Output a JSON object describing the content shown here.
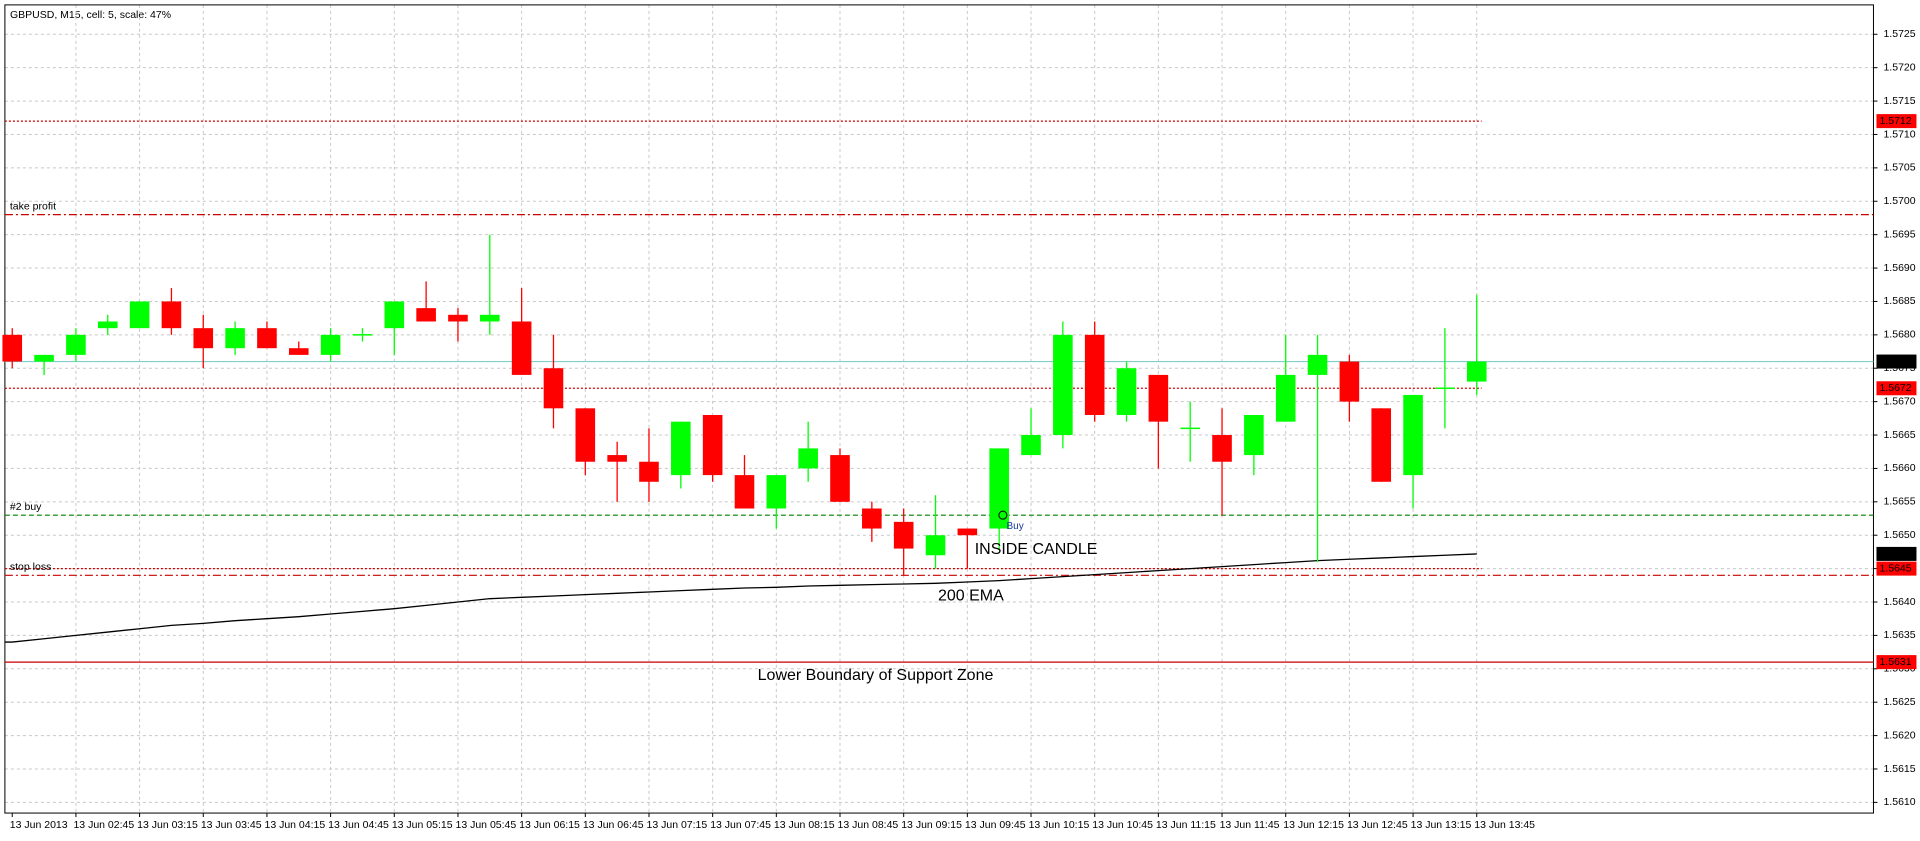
{
  "chart_data": {
    "type": "candlestick",
    "title": "GBPUSD, M15, cell: 5, scale: 47%",
    "categories": [
      "13 Jun 2013",
      null,
      "13 Jun 02:45",
      null,
      "13 Jun 03:15",
      null,
      "13 Jun 03:45",
      null,
      "13 Jun 04:15",
      null,
      "13 Jun 04:45",
      null,
      "13 Jun 05:15",
      null,
      "13 Jun 05:45",
      null,
      "13 Jun 06:15",
      null,
      "13 Jun 06:45",
      null,
      "13 Jun 07:15",
      null,
      "13 Jun 07:45",
      null,
      "13 Jun 08:15",
      null,
      "13 Jun 08:45",
      null,
      "13 Jun 09:15",
      null,
      "13 Jun 09:45",
      null,
      "13 Jun 10:15",
      null,
      "13 Jun 10:45",
      null,
      "13 Jun 11:15",
      null,
      "13 Jun 11:45",
      null,
      "13 Jun 12:15",
      null,
      "13 Jun 12:45",
      null,
      "13 Jun 13:15",
      null,
      "13 Jun 13:45"
    ],
    "open": [
      1.568,
      1.5676,
      1.5677,
      1.5681,
      1.5681,
      1.5685,
      1.5681,
      1.5678,
      1.5681,
      1.5678,
      1.5677,
      1.568,
      1.5681,
      1.5684,
      1.5683,
      1.5682,
      1.5682,
      1.5675,
      1.5669,
      1.5662,
      1.5661,
      1.5659,
      1.5668,
      1.5659,
      1.5654,
      1.566,
      1.5662,
      1.5654,
      1.5652,
      1.5647,
      1.5651,
      1.5651,
      1.5662,
      1.5665,
      1.568,
      1.5668,
      1.5674,
      1.5666,
      1.5665,
      1.5662,
      1.5667,
      1.5674,
      1.5676,
      1.5669,
      1.5659,
      1.5672,
      1.5673
    ],
    "high": [
      1.5681,
      1.5677,
      1.5681,
      1.5683,
      1.5685,
      1.5687,
      1.5683,
      1.5682,
      1.5682,
      1.5679,
      1.5681,
      1.5681,
      1.5685,
      1.5688,
      1.5684,
      1.5695,
      1.5687,
      1.568,
      1.5669,
      1.5664,
      1.5666,
      1.5667,
      1.5668,
      1.5662,
      1.5659,
      1.5667,
      1.5663,
      1.5655,
      1.5654,
      1.5656,
      1.5651,
      1.5663,
      1.5669,
      1.5682,
      1.5682,
      1.5676,
      1.5674,
      1.567,
      1.5669,
      1.5668,
      1.568,
      1.568,
      1.5677,
      1.5669,
      1.5671,
      1.5681,
      1.5686
    ],
    "low": [
      1.5675,
      1.5674,
      1.5676,
      1.568,
      1.5681,
      1.568,
      1.5675,
      1.5677,
      1.5678,
      1.5677,
      1.5676,
      1.5679,
      1.5677,
      1.5682,
      1.5679,
      1.568,
      1.5674,
      1.5666,
      1.5659,
      1.5655,
      1.5655,
      1.5657,
      1.5658,
      1.5654,
      1.5651,
      1.5658,
      1.5655,
      1.5649,
      1.5644,
      1.5645,
      1.5645,
      1.5648,
      1.5662,
      1.5663,
      1.5667,
      1.5667,
      1.566,
      1.5661,
      1.5653,
      1.5659,
      1.5667,
      1.5646,
      1.5667,
      1.5658,
      1.5654,
      1.5666,
      1.5671
    ],
    "close": [
      1.5676,
      1.5677,
      1.568,
      1.5682,
      1.5685,
      1.5681,
      1.5678,
      1.5681,
      1.5678,
      1.5677,
      1.568,
      1.568,
      1.5685,
      1.5682,
      1.5682,
      1.5683,
      1.5674,
      1.5669,
      1.5661,
      1.5661,
      1.5658,
      1.5667,
      1.5659,
      1.5654,
      1.5659,
      1.5663,
      1.5655,
      1.5651,
      1.5648,
      1.565,
      1.565,
      1.5663,
      1.5665,
      1.568,
      1.5668,
      1.5675,
      1.5667,
      1.5666,
      1.5661,
      1.5668,
      1.5674,
      1.5677,
      1.567,
      1.5658,
      1.5671,
      1.5672,
      1.5676
    ],
    "up_color": "#00ff00",
    "down_color": "#ff0000",
    "ema": {
      "color": "#000000",
      "last_label": "1.5647",
      "values": [
        1.5634,
        1.56345,
        1.5635,
        1.56355,
        1.5636,
        1.56365,
        1.56368,
        1.56372,
        1.56375,
        1.56378,
        1.56382,
        1.56386,
        1.5639,
        1.56395,
        1.564,
        1.56405,
        1.56407,
        1.56409,
        1.56411,
        1.56413,
        1.56415,
        1.56417,
        1.56419,
        1.56421,
        1.56422,
        1.56424,
        1.56425,
        1.56426,
        1.56427,
        1.56428,
        1.5643,
        1.56432,
        1.56435,
        1.56438,
        1.56441,
        1.56444,
        1.56447,
        1.5645,
        1.56453,
        1.56456,
        1.56459,
        1.56462,
        1.56464,
        1.56466,
        1.56468,
        1.5647,
        1.56472
      ]
    },
    "levels": [
      {
        "value": 1.5712,
        "color": "#cc0000",
        "style": "dotted",
        "box": true,
        "box_color": "#ff0000",
        "to_last": true
      },
      {
        "value": 1.5698,
        "text": "take profit",
        "color": "#cc0000",
        "style": "dashdot"
      },
      {
        "value": 1.5676,
        "color": "#7fcfcf",
        "style": "solid",
        "box": true,
        "box_color": "#000000"
      },
      {
        "value": 1.5672,
        "color": "#cc0000",
        "style": "dotted",
        "box": true,
        "box_color": "#ff0000",
        "to_last": true
      },
      {
        "value": 1.5653,
        "text": "#2 buy",
        "color": "#008000",
        "style": "dashed"
      },
      {
        "value": 1.5645,
        "color": "#cc0000",
        "style": "dotted",
        "box": true,
        "box_color": "#ff0000",
        "to_last": true
      },
      {
        "value": 1.5644,
        "text": "stop loss",
        "color": "#cc0000",
        "style": "dashdot"
      },
      {
        "value": 1.5631,
        "color": "#cc0000",
        "style": "solid",
        "box": true,
        "box_color": "#ff0000"
      }
    ],
    "annotations": [
      "INSIDE CANDLE",
      "200 EMA",
      "Lower Boundary of Support Zone",
      "Buy"
    ],
    "ylim": [
      1.56084,
      1.57294
    ],
    "yticks": [
      {
        "value": 1.561,
        "label": "1.5610"
      },
      1.5615,
      {
        "value": 1.562,
        "label": "1.5620"
      },
      1.5625,
      {
        "value": 1.563,
        "label": "1.5630"
      },
      1.5635,
      {
        "value": 1.564,
        "label": "1.5640"
      },
      1.5645,
      {
        "value": 1.565,
        "label": "1.5650"
      },
      1.5655,
      {
        "value": 1.566,
        "label": "1.5660"
      },
      1.5665,
      {
        "value": 1.567,
        "label": "1.5670"
      },
      1.5675,
      {
        "value": 1.568,
        "label": "1.5680"
      },
      1.5685,
      {
        "value": 1.569,
        "label": "1.5690"
      },
      1.5695,
      {
        "value": 1.57,
        "label": "1.5700"
      },
      1.5705,
      {
        "value": 1.571,
        "label": "1.5710"
      },
      1.5715,
      {
        "value": 1.572,
        "label": "1.5720"
      },
      1.5725
    ],
    "grid": true
  }
}
